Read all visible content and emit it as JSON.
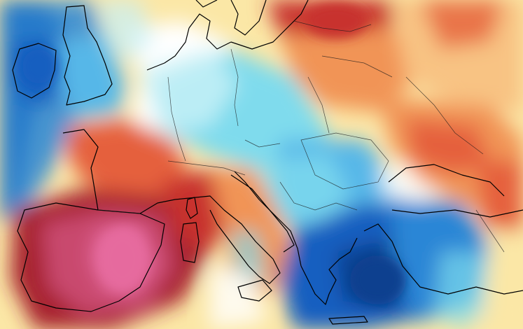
{
  "map": {
    "kind": "temperature anomaly shading over Europe",
    "labels_shown": false,
    "palette": {
      "background_neutral": "#ffffff",
      "pale_yellow": "#fbe7a6",
      "light_orange": "#f8c383",
      "orange": "#f19456",
      "red_orange": "#e5603c",
      "deep_red": "#c8302d",
      "dark_red": "#a7202f",
      "crimson_pink": "#c94a6e",
      "hot_pink": "#e66b9e",
      "pale_cyan": "#c6f0f6",
      "cyan": "#7fdbed",
      "sky_blue": "#56b7e8",
      "mid_blue": "#2a86d6",
      "deep_blue": "#145fc0",
      "navy": "#0d3f8f",
      "coastline": "#000000",
      "borders": "#1a1a1a"
    },
    "regions": [
      {
        "id": "atlantic-west-cold",
        "color": "navy"
      },
      {
        "id": "ireland-cold",
        "color": "deep_blue"
      },
      {
        "id": "britain-cold",
        "color": "mid_blue"
      },
      {
        "id": "iberia-hot",
        "color": "dark_red"
      },
      {
        "id": "spain-core-hot",
        "color": "hot_pink"
      },
      {
        "id": "france-warm",
        "color": "red_orange"
      },
      {
        "id": "italy-warm",
        "color": "orange"
      },
      {
        "id": "central-europe-cool",
        "color": "cyan"
      },
      {
        "id": "balkans-cool",
        "color": "sky_blue"
      },
      {
        "id": "greece-aegean-cold",
        "color": "deep_blue"
      },
      {
        "id": "turkey-cold",
        "color": "mid_blue"
      },
      {
        "id": "baltic-hot",
        "color": "deep_red"
      },
      {
        "id": "ukraine-warm",
        "color": "orange"
      },
      {
        "id": "russia-mild",
        "color": "light_orange"
      }
    ]
  }
}
